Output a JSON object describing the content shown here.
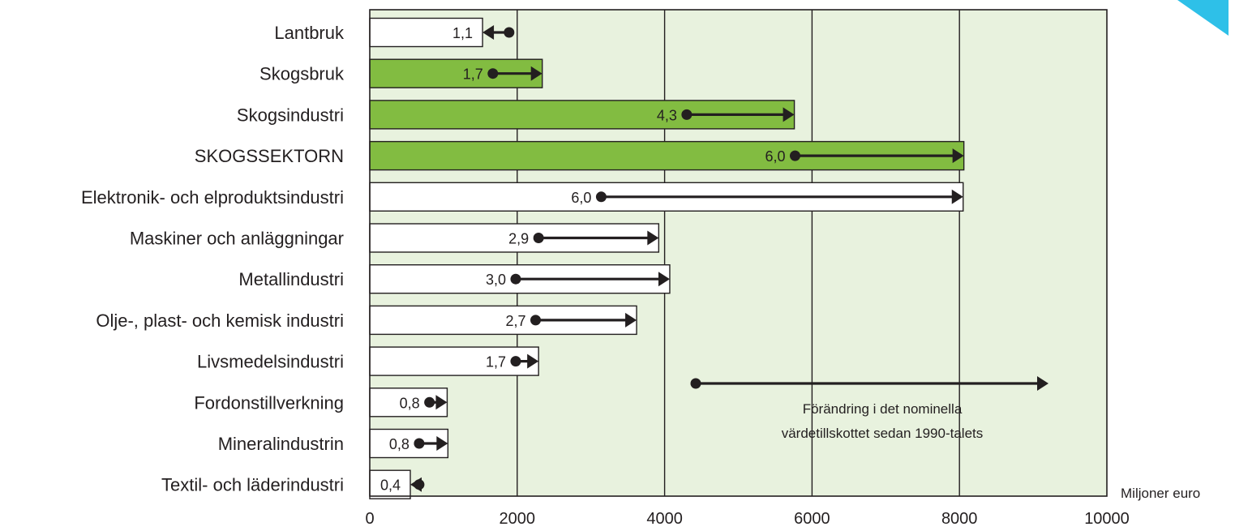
{
  "chart_data": {
    "type": "bar",
    "orientation": "horizontal",
    "categories": [
      "Lantbruk",
      "Skogsbruk",
      "Skogsindustri",
      "SKOGSSEKTORN",
      "Elektronik- och elproduktsindustri",
      "Maskiner och anläggningar",
      "Metallindustri",
      "Olje-, plast- och kemisk industri",
      "Livsmedelsindustri",
      "Fordonstillverkning",
      "Mineralindustrin",
      "Textil- och läderindustri"
    ],
    "values": [
      1530,
      2340,
      5760,
      8060,
      8050,
      3920,
      4070,
      3620,
      2290,
      1050,
      1060,
      550
    ],
    "value_labels": [
      "1,1",
      "1,7",
      "4,3",
      "6,0",
      "6,0",
      "2,9",
      "3,0",
      "2,7",
      "1,7",
      "0,8",
      "0,8",
      "0,4"
    ],
    "start_1990s": [
      1890,
      1670,
      4300,
      5770,
      3140,
      2290,
      1980,
      2250,
      1980,
      810,
      670,
      670
    ],
    "highlight": [
      false,
      true,
      true,
      true,
      false,
      false,
      false,
      false,
      false,
      false,
      false,
      false
    ],
    "xlabel": "Miljoner euro",
    "xlim": [
      0,
      10000
    ],
    "xticks": [
      0,
      2000,
      4000,
      6000,
      8000,
      10000
    ],
    "grid": true,
    "legend": {
      "text_line1": "Förändring i det nominella",
      "text_line2": "värdetillskottet sedan 1990-talets"
    },
    "colors": {
      "plot_background": "#e8f2de",
      "highlight_bar": "#82bc41",
      "normal_bar": "#ffffff",
      "edge": "#231f20",
      "corner_accent": "#2ec0e8"
    }
  }
}
